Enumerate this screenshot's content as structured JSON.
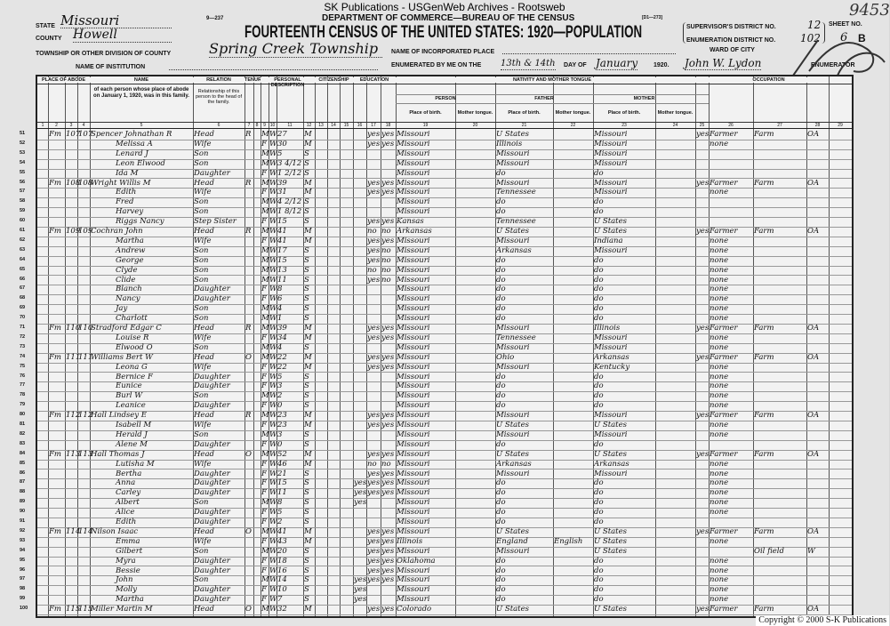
{
  "site_title": "SK Publications - USGenWeb Archives - Rootsweb",
  "form_no": "9—237",
  "form_code": "[D1—273]",
  "department": "DEPARTMENT OF COMMERCE—BUREAU OF THE CENSUS",
  "title": "FOURTEENTH CENSUS OF THE UNITED STATES: 1920—POPULATION",
  "header": {
    "state_label": "STATE",
    "state": "Missouri",
    "county_label": "COUNTY",
    "county": "Howell",
    "township_label": "TOWNSHIP OR OTHER DIVISION OF COUNTY",
    "township": "Spring Creek Township",
    "institution_label": "NAME OF INSTITUTION",
    "incorporated_label": "NAME OF INCORPORATED PLACE",
    "ward_label": "WARD OF CITY",
    "enumerated_label": "ENUMERATED BY ME ON THE",
    "enumerated_day": "13th & 14th",
    "day_of_label": "DAY OF",
    "month": "January",
    "year": "1920.",
    "enumerator": "John W. Lydon",
    "enumerator_label": "ENUMERATOR",
    "supervisor_label": "SUPERVISOR'S DISTRICT NO.",
    "supervisor_no": "12",
    "ed_label": "ENUMERATION DISTRICT NO.",
    "ed_no": "102",
    "sheet_label": "SHEET NO.",
    "sheet_no": "6",
    "sheet_side": "B",
    "stamp": "9453"
  },
  "column_groups": {
    "abode": "PLACE OF ABODE",
    "name": "NAME",
    "relation": "RELATION",
    "tenure": "TENURE",
    "personal": "PERSONAL DESCRIPTION",
    "citizenship": "CITIZENSHIP",
    "education": "EDUCATION",
    "nativity": "NATIVITY AND MOTHER TONGUE",
    "person": "PERSON",
    "father": "FATHER",
    "mother": "MOTHER",
    "occupation": "OCCUPATION",
    "place_of_birth": "Place of birth.",
    "mother_tongue": "Mother tongue.",
    "name_desc": "of each person whose place of abode on January 1, 1920, was in this family.",
    "relation_desc": "Relationship of this person to the head of the family."
  },
  "column_numbers": [
    "1",
    "2",
    "3",
    "4",
    "5",
    "6",
    "7",
    "8",
    "9",
    "10",
    "11",
    "12",
    "13",
    "14",
    "15",
    "16",
    "17",
    "18",
    "19",
    "20",
    "21",
    "22",
    "23",
    "24",
    "25",
    "26",
    "27",
    "28",
    "29"
  ],
  "rows": [
    {
      "line": "51",
      "mark": "Fm",
      "dw": "107",
      "fam": "107",
      "name": "Spencer Johnathan R",
      "rel": "Head",
      "own": "R",
      "sex": "M",
      "race": "W",
      "age": "27",
      "ms": "M",
      "read": "yes",
      "write": "yes",
      "bp": "Missouri",
      "fbp": "U States",
      "mbp": "Missouri",
      "eng": "yes",
      "occ": "Farmer",
      "ind": "Farm",
      "emp": "OA"
    },
    {
      "line": "52",
      "name": "Melissa A",
      "rel": "Wife",
      "sex": "F",
      "race": "W",
      "age": "30",
      "ms": "M",
      "read": "yes",
      "write": "yes",
      "bp": "Missouri",
      "fbp": "Illinois",
      "mbp": "Missouri",
      "occ": "none"
    },
    {
      "line": "53",
      "name": "Lenard J",
      "rel": "Son",
      "sex": "M",
      "race": "W",
      "age": "5",
      "ms": "S",
      "bp": "Missouri",
      "fbp": "Missouri",
      "mbp": "Missouri"
    },
    {
      "line": "54",
      "name": "Leon Elwood",
      "rel": "Son",
      "sex": "M",
      "race": "W",
      "age": "3 4/12",
      "ms": "S",
      "bp": "Missouri",
      "fbp": "Missouri",
      "mbp": "Missouri"
    },
    {
      "line": "55",
      "name": "Ida M",
      "rel": "Daughter",
      "sex": "F",
      "race": "W",
      "age": "1 2/12",
      "ms": "S",
      "bp": "Missouri",
      "fbp": "do",
      "mbp": "do"
    },
    {
      "line": "56",
      "mark": "Fm",
      "dw": "108",
      "fam": "108",
      "name": "Wright Willis M",
      "rel": "Head",
      "own": "R",
      "sex": "M",
      "race": "W",
      "age": "39",
      "ms": "M",
      "read": "yes",
      "write": "yes",
      "bp": "Missouri",
      "fbp": "Missouri",
      "mbp": "Missouri",
      "eng": "yes",
      "occ": "Farmer",
      "ind": "Farm",
      "emp": "OA"
    },
    {
      "line": "57",
      "name": "Edith",
      "rel": "Wife",
      "sex": "F",
      "race": "W",
      "age": "31",
      "ms": "M",
      "read": "yes",
      "write": "yes",
      "bp": "Missouri",
      "fbp": "Tennessee",
      "mbp": "Missouri",
      "occ": "none"
    },
    {
      "line": "58",
      "name": "Fred",
      "rel": "Son",
      "sex": "M",
      "race": "W",
      "age": "4 2/12",
      "ms": "S",
      "bp": "Missouri",
      "fbp": "do",
      "mbp": "do"
    },
    {
      "line": "59",
      "name": "Harvey",
      "rel": "Son",
      "sex": "M",
      "race": "W",
      "age": "1 8/12",
      "ms": "S",
      "bp": "Missouri",
      "fbp": "do",
      "mbp": "do"
    },
    {
      "line": "60",
      "name": "Riggs Nancy",
      "rel": "Step Sister",
      "sex": "F",
      "race": "W",
      "age": "15",
      "ms": "S",
      "read": "yes",
      "write": "yes",
      "bp": "Kansas",
      "fbp": "Tennessee",
      "mbp": "U States"
    },
    {
      "line": "61",
      "mark": "Fm",
      "dw": "109",
      "fam": "109",
      "name": "Cochran John",
      "rel": "Head",
      "own": "R",
      "sex": "M",
      "race": "W",
      "age": "41",
      "ms": "M",
      "read": "no",
      "write": "no",
      "bp": "Arkansas",
      "fbp": "U States",
      "mbp": "U States",
      "eng": "yes",
      "occ": "Farmer",
      "ind": "Farm",
      "emp": "OA"
    },
    {
      "line": "62",
      "name": "Martha",
      "rel": "Wife",
      "sex": "F",
      "race": "W",
      "age": "41",
      "ms": "M",
      "read": "yes",
      "write": "yes",
      "bp": "Missouri",
      "fbp": "Missouri",
      "mbp": "Indiana",
      "occ": "none"
    },
    {
      "line": "63",
      "name": "Andrew",
      "rel": "Son",
      "sex": "M",
      "race": "W",
      "age": "17",
      "ms": "S",
      "read": "yes",
      "write": "no",
      "bp": "Missouri",
      "fbp": "Arkansas",
      "mbp": "Missouri",
      "occ": "none"
    },
    {
      "line": "64",
      "name": "George",
      "rel": "Son",
      "sex": "M",
      "race": "W",
      "age": "15",
      "ms": "S",
      "read": "yes",
      "write": "no",
      "bp": "Missouri",
      "fbp": "do",
      "mbp": "do",
      "occ": "none"
    },
    {
      "line": "65",
      "name": "Clyde",
      "rel": "Son",
      "sex": "M",
      "race": "W",
      "age": "13",
      "ms": "S",
      "read": "no",
      "write": "no",
      "bp": "Missouri",
      "fbp": "do",
      "mbp": "do",
      "occ": "none"
    },
    {
      "line": "66",
      "name": "Clide",
      "rel": "Son",
      "sex": "M",
      "race": "W",
      "age": "11",
      "ms": "S",
      "read": "yes",
      "write": "no",
      "bp": "Missouri",
      "fbp": "do",
      "mbp": "do",
      "occ": "none"
    },
    {
      "line": "67",
      "name": "Blanch",
      "rel": "Daughter",
      "sex": "F",
      "race": "W",
      "age": "8",
      "ms": "S",
      "bp": "Missouri",
      "fbp": "do",
      "mbp": "do",
      "occ": "none"
    },
    {
      "line": "68",
      "name": "Nancy",
      "rel": "Daughter",
      "sex": "F",
      "race": "W",
      "age": "6",
      "ms": "S",
      "bp": "Missouri",
      "fbp": "do",
      "mbp": "do",
      "occ": "none"
    },
    {
      "line": "69",
      "name": "Jay",
      "rel": "Son",
      "sex": "M",
      "race": "W",
      "age": "4",
      "ms": "S",
      "bp": "Missouri",
      "fbp": "do",
      "mbp": "do",
      "occ": "none"
    },
    {
      "line": "70",
      "name": "Charlott",
      "rel": "Son",
      "sex": "M",
      "race": "W",
      "age": "1",
      "ms": "S",
      "bp": "Missouri",
      "fbp": "do",
      "mbp": "do",
      "occ": "none"
    },
    {
      "line": "71",
      "mark": "Fm",
      "dw": "110",
      "fam": "110",
      "name": "Stradford Edgar C",
      "rel": "Head",
      "own": "R",
      "sex": "M",
      "race": "W",
      "age": "39",
      "ms": "M",
      "read": "yes",
      "write": "yes",
      "bp": "Missouri",
      "fbp": "Missouri",
      "mbp": "Illinois",
      "eng": "yes",
      "occ": "Farmer",
      "ind": "Farm",
      "emp": "OA"
    },
    {
      "line": "72",
      "name": "Louise R",
      "rel": "Wife",
      "sex": "F",
      "race": "W",
      "age": "34",
      "ms": "M",
      "read": "yes",
      "write": "yes",
      "bp": "Missouri",
      "fbp": "Tennessee",
      "mbp": "Missouri",
      "occ": "none"
    },
    {
      "line": "73",
      "name": "Elwood O",
      "rel": "Son",
      "sex": "M",
      "race": "W",
      "age": "4",
      "ms": "S",
      "bp": "Missouri",
      "fbp": "Missouri",
      "mbp": "Missouri",
      "occ": "none"
    },
    {
      "line": "74",
      "mark": "Fm",
      "dw": "111",
      "fam": "111",
      "name": "Williams Bert W",
      "rel": "Head",
      "own": "O",
      "sex": "M",
      "race": "W",
      "age": "22",
      "ms": "M",
      "read": "yes",
      "write": "yes",
      "bp": "Missouri",
      "fbp": "Ohio",
      "mbp": "Arkansas",
      "eng": "yes",
      "occ": "Farmer",
      "ind": "Farm",
      "emp": "OA"
    },
    {
      "line": "75",
      "name": "Leona G",
      "rel": "Wife",
      "sex": "F",
      "race": "W",
      "age": "22",
      "ms": "M",
      "read": "yes",
      "write": "yes",
      "bp": "Missouri",
      "fbp": "Missouri",
      "mbp": "Kentucky",
      "occ": "none"
    },
    {
      "line": "76",
      "name": "Bernice F",
      "rel": "Daughter",
      "sex": "F",
      "race": "W",
      "age": "5",
      "ms": "S",
      "bp": "Missouri",
      "fbp": "do",
      "mbp": "do",
      "occ": "none"
    },
    {
      "line": "77",
      "name": "Eunice",
      "rel": "Daughter",
      "sex": "F",
      "race": "W",
      "age": "3",
      "ms": "S",
      "bp": "Missouri",
      "fbp": "do",
      "mbp": "do",
      "occ": "none"
    },
    {
      "line": "78",
      "name": "Burl W",
      "rel": "Son",
      "sex": "M",
      "race": "W",
      "age": "2",
      "ms": "S",
      "bp": "Missouri",
      "fbp": "do",
      "mbp": "do",
      "occ": "none"
    },
    {
      "line": "79",
      "name": "Leanice",
      "rel": "Daughter",
      "sex": "F",
      "race": "W",
      "age": "0",
      "ms": "S",
      "bp": "Missouri",
      "fbp": "do",
      "mbp": "do",
      "occ": "none"
    },
    {
      "line": "80",
      "mark": "Fm",
      "dw": "112",
      "fam": "112",
      "name": "Hall Lindsey E",
      "rel": "Head",
      "own": "R",
      "sex": "M",
      "race": "W",
      "age": "23",
      "ms": "M",
      "read": "yes",
      "write": "yes",
      "bp": "Missouri",
      "fbp": "Missouri",
      "mbp": "Missouri",
      "eng": "yes",
      "occ": "Farmer",
      "ind": "Farm",
      "emp": "OA"
    },
    {
      "line": "81",
      "name": "Isabell M",
      "rel": "Wife",
      "sex": "F",
      "race": "W",
      "age": "23",
      "ms": "M",
      "read": "yes",
      "write": "yes",
      "bp": "Missouri",
      "fbp": "U States",
      "mbp": "U States",
      "occ": "none"
    },
    {
      "line": "82",
      "name": "Herald J",
      "rel": "Son",
      "sex": "M",
      "race": "W",
      "age": "3",
      "ms": "S",
      "bp": "Missouri",
      "fbp": "Missouri",
      "mbp": "Missouri",
      "occ": "none"
    },
    {
      "line": "83",
      "name": "Alene M",
      "rel": "Daughter",
      "sex": "F",
      "race": "W",
      "age": "0",
      "ms": "S",
      "bp": "Missouri",
      "fbp": "do",
      "mbp": "do"
    },
    {
      "line": "84",
      "mark": "Fm",
      "dw": "113",
      "fam": "113",
      "name": "Hall Thomas J",
      "rel": "Head",
      "own": "O",
      "sex": "M",
      "race": "W",
      "age": "52",
      "ms": "M",
      "read": "yes",
      "write": "yes",
      "bp": "Missouri",
      "fbp": "U States",
      "mbp": "U States",
      "eng": "yes",
      "occ": "Farmer",
      "ind": "Farm",
      "emp": "OA"
    },
    {
      "line": "85",
      "name": "Lutisha M",
      "rel": "Wife",
      "sex": "F",
      "race": "W",
      "age": "46",
      "ms": "M",
      "read": "no",
      "write": "no",
      "bp": "Missouri",
      "fbp": "Arkansas",
      "mbp": "Arkansas",
      "occ": "none"
    },
    {
      "line": "86",
      "name": "Bertha",
      "rel": "Daughter",
      "sex": "F",
      "race": "W",
      "age": "21",
      "ms": "S",
      "read": "yes",
      "write": "yes",
      "bp": "Missouri",
      "fbp": "Missouri",
      "mbp": "Missouri",
      "occ": "none"
    },
    {
      "line": "87",
      "name": "Anna",
      "rel": "Daughter",
      "sex": "F",
      "race": "W",
      "age": "15",
      "ms": "S",
      "school": "yes",
      "read": "yes",
      "write": "yes",
      "bp": "Missouri",
      "fbp": "do",
      "mbp": "do",
      "occ": "none"
    },
    {
      "line": "88",
      "name": "Carley",
      "rel": "Daughter",
      "sex": "F",
      "race": "W",
      "age": "11",
      "ms": "S",
      "school": "yes",
      "read": "yes",
      "write": "yes",
      "bp": "Missouri",
      "fbp": "do",
      "mbp": "do",
      "occ": "none"
    },
    {
      "line": "89",
      "name": "Albert",
      "rel": "Son",
      "sex": "M",
      "race": "W",
      "age": "8",
      "ms": "S",
      "school": "yes",
      "bp": "Missouri",
      "fbp": "do",
      "mbp": "do",
      "occ": "none"
    },
    {
      "line": "90",
      "name": "Alice",
      "rel": "Daughter",
      "sex": "F",
      "race": "W",
      "age": "5",
      "ms": "S",
      "bp": "Missouri",
      "fbp": "do",
      "mbp": "do",
      "occ": "none"
    },
    {
      "line": "91",
      "name": "Edith",
      "rel": "Daughter",
      "sex": "F",
      "race": "W",
      "age": "2",
      "ms": "S",
      "bp": "Missouri",
      "fbp": "do",
      "mbp": "do"
    },
    {
      "line": "92",
      "mark": "Fm",
      "dw": "114",
      "fam": "114",
      "name": "Nilson Isaac",
      "rel": "Head",
      "own": "O",
      "sex": "M",
      "race": "W",
      "age": "41",
      "ms": "M",
      "read": "yes",
      "write": "yes",
      "bp": "Missouri",
      "fbp": "U States",
      "mbp": "U States",
      "eng": "yes",
      "occ": "Farmer",
      "ind": "Farm",
      "emp": "OA"
    },
    {
      "line": "93",
      "name": "Emma",
      "rel": "Wife",
      "sex": "F",
      "race": "W",
      "age": "43",
      "ms": "M",
      "read": "yes",
      "write": "yes",
      "bp": "Illinois",
      "fbp": "England",
      "ftongue": "English",
      "mbp": "U States",
      "occ": "none"
    },
    {
      "line": "94",
      "name": "Gilbert",
      "rel": "Son",
      "sex": "M",
      "race": "W",
      "age": "20",
      "ms": "S",
      "read": "yes",
      "write": "yes",
      "bp": "Missouri",
      "fbp": "Missouri",
      "mbp": "U States",
      "occ": "",
      "ind": "Oil field",
      "emp": "W"
    },
    {
      "line": "95",
      "name": "Myra",
      "rel": "Daughter",
      "sex": "F",
      "race": "W",
      "age": "18",
      "ms": "S",
      "read": "yes",
      "write": "yes",
      "bp": "Oklahoma",
      "fbp": "do",
      "mbp": "do",
      "occ": "none"
    },
    {
      "line": "96",
      "name": "Bessie",
      "rel": "Daughter",
      "sex": "F",
      "race": "W",
      "age": "16",
      "ms": "S",
      "read": "yes",
      "write": "yes",
      "bp": "Missouri",
      "fbp": "do",
      "mbp": "do",
      "occ": "none"
    },
    {
      "line": "97",
      "name": "John",
      "rel": "Son",
      "sex": "M",
      "race": "W",
      "age": "14",
      "ms": "S",
      "school": "yes",
      "read": "yes",
      "write": "yes",
      "bp": "Missouri",
      "fbp": "do",
      "mbp": "do",
      "occ": "none"
    },
    {
      "line": "98",
      "name": "Molly",
      "rel": "Daughter",
      "sex": "F",
      "race": "W",
      "age": "10",
      "ms": "S",
      "school": "yes",
      "bp": "Missouri",
      "fbp": "do",
      "mbp": "do",
      "occ": "none"
    },
    {
      "line": "99",
      "name": "Martha",
      "rel": "Daughter",
      "sex": "F",
      "race": "W",
      "age": "7",
      "ms": "S",
      "school": "yes",
      "bp": "Missouri",
      "fbp": "do",
      "mbp": "do",
      "occ": "none"
    },
    {
      "line": "100",
      "mark": "Fm",
      "dw": "115",
      "fam": "115",
      "name": "Miller Martin M",
      "rel": "Head",
      "own": "O",
      "sex": "M",
      "race": "W",
      "age": "32",
      "ms": "M",
      "read": "yes",
      "write": "yes",
      "bp": "Colorado",
      "fbp": "U States",
      "mbp": "U States",
      "eng": "yes",
      "occ": "Farmer",
      "ind": "Farm",
      "emp": "OA"
    }
  ],
  "copyright": "Copyright © 2000 S-K Publications"
}
